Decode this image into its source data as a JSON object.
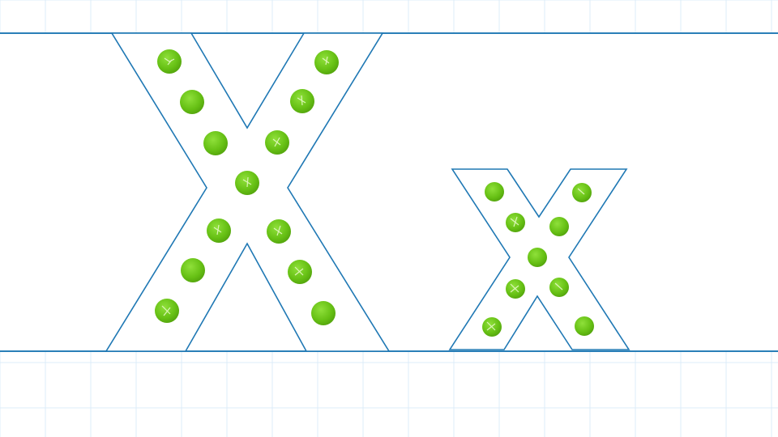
{
  "colors": {
    "background": "#ffffff",
    "grid_line": "#dcecf8",
    "guide_line": "#2a7fb8",
    "letter_outline": "#1f78b4",
    "dot_green": "#6cc417",
    "dot_highlight": "#d8f5b0"
  },
  "letters": [
    {
      "name": "uppercase-x",
      "glyph": "X",
      "dot_count": 13
    },
    {
      "name": "lowercase-x",
      "glyph": "x",
      "dot_count": 9
    }
  ]
}
